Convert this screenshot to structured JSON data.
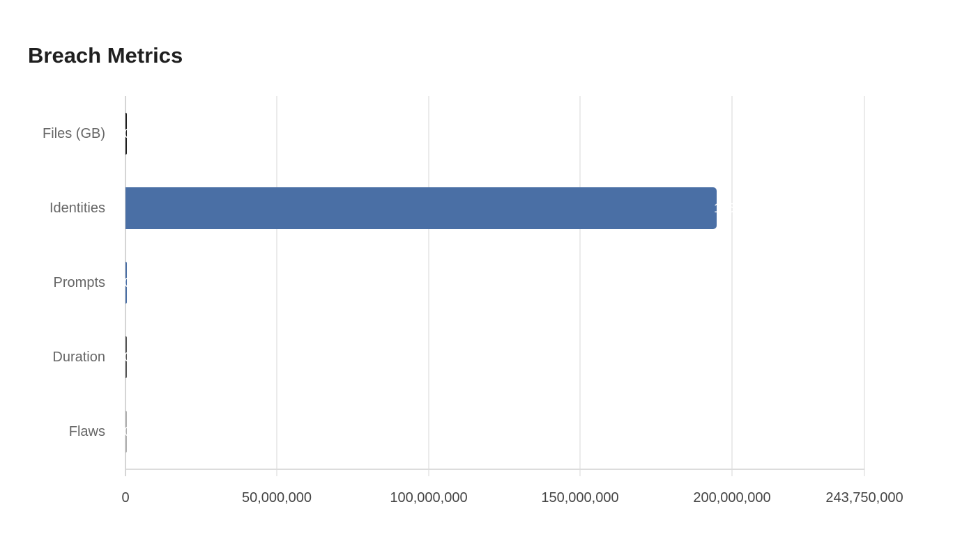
{
  "title": "Breach Metrics",
  "chart_data": {
    "type": "bar",
    "orientation": "horizontal",
    "title": "Breach Metrics",
    "categories": [
      "Files (GB)",
      "Identities",
      "Prompts",
      "Duration",
      "Flaws"
    ],
    "values": [
      0,
      195000000,
      0,
      0,
      0
    ],
    "value_labels": [
      "0",
      "195,000,000",
      "0",
      "0",
      "0"
    ],
    "colors": [
      "#1e1e1e",
      "#4a6fa5",
      "#4a6fa5",
      "#555555",
      "#b0b0b0"
    ],
    "xlabel": "",
    "ylabel": "",
    "xlim": [
      0,
      243750000
    ],
    "x_ticks": [
      "0",
      "50,000,000",
      "100,000,000",
      "150,000,000",
      "200,000,000",
      "243,750,000"
    ],
    "grid": true,
    "legend": null
  }
}
